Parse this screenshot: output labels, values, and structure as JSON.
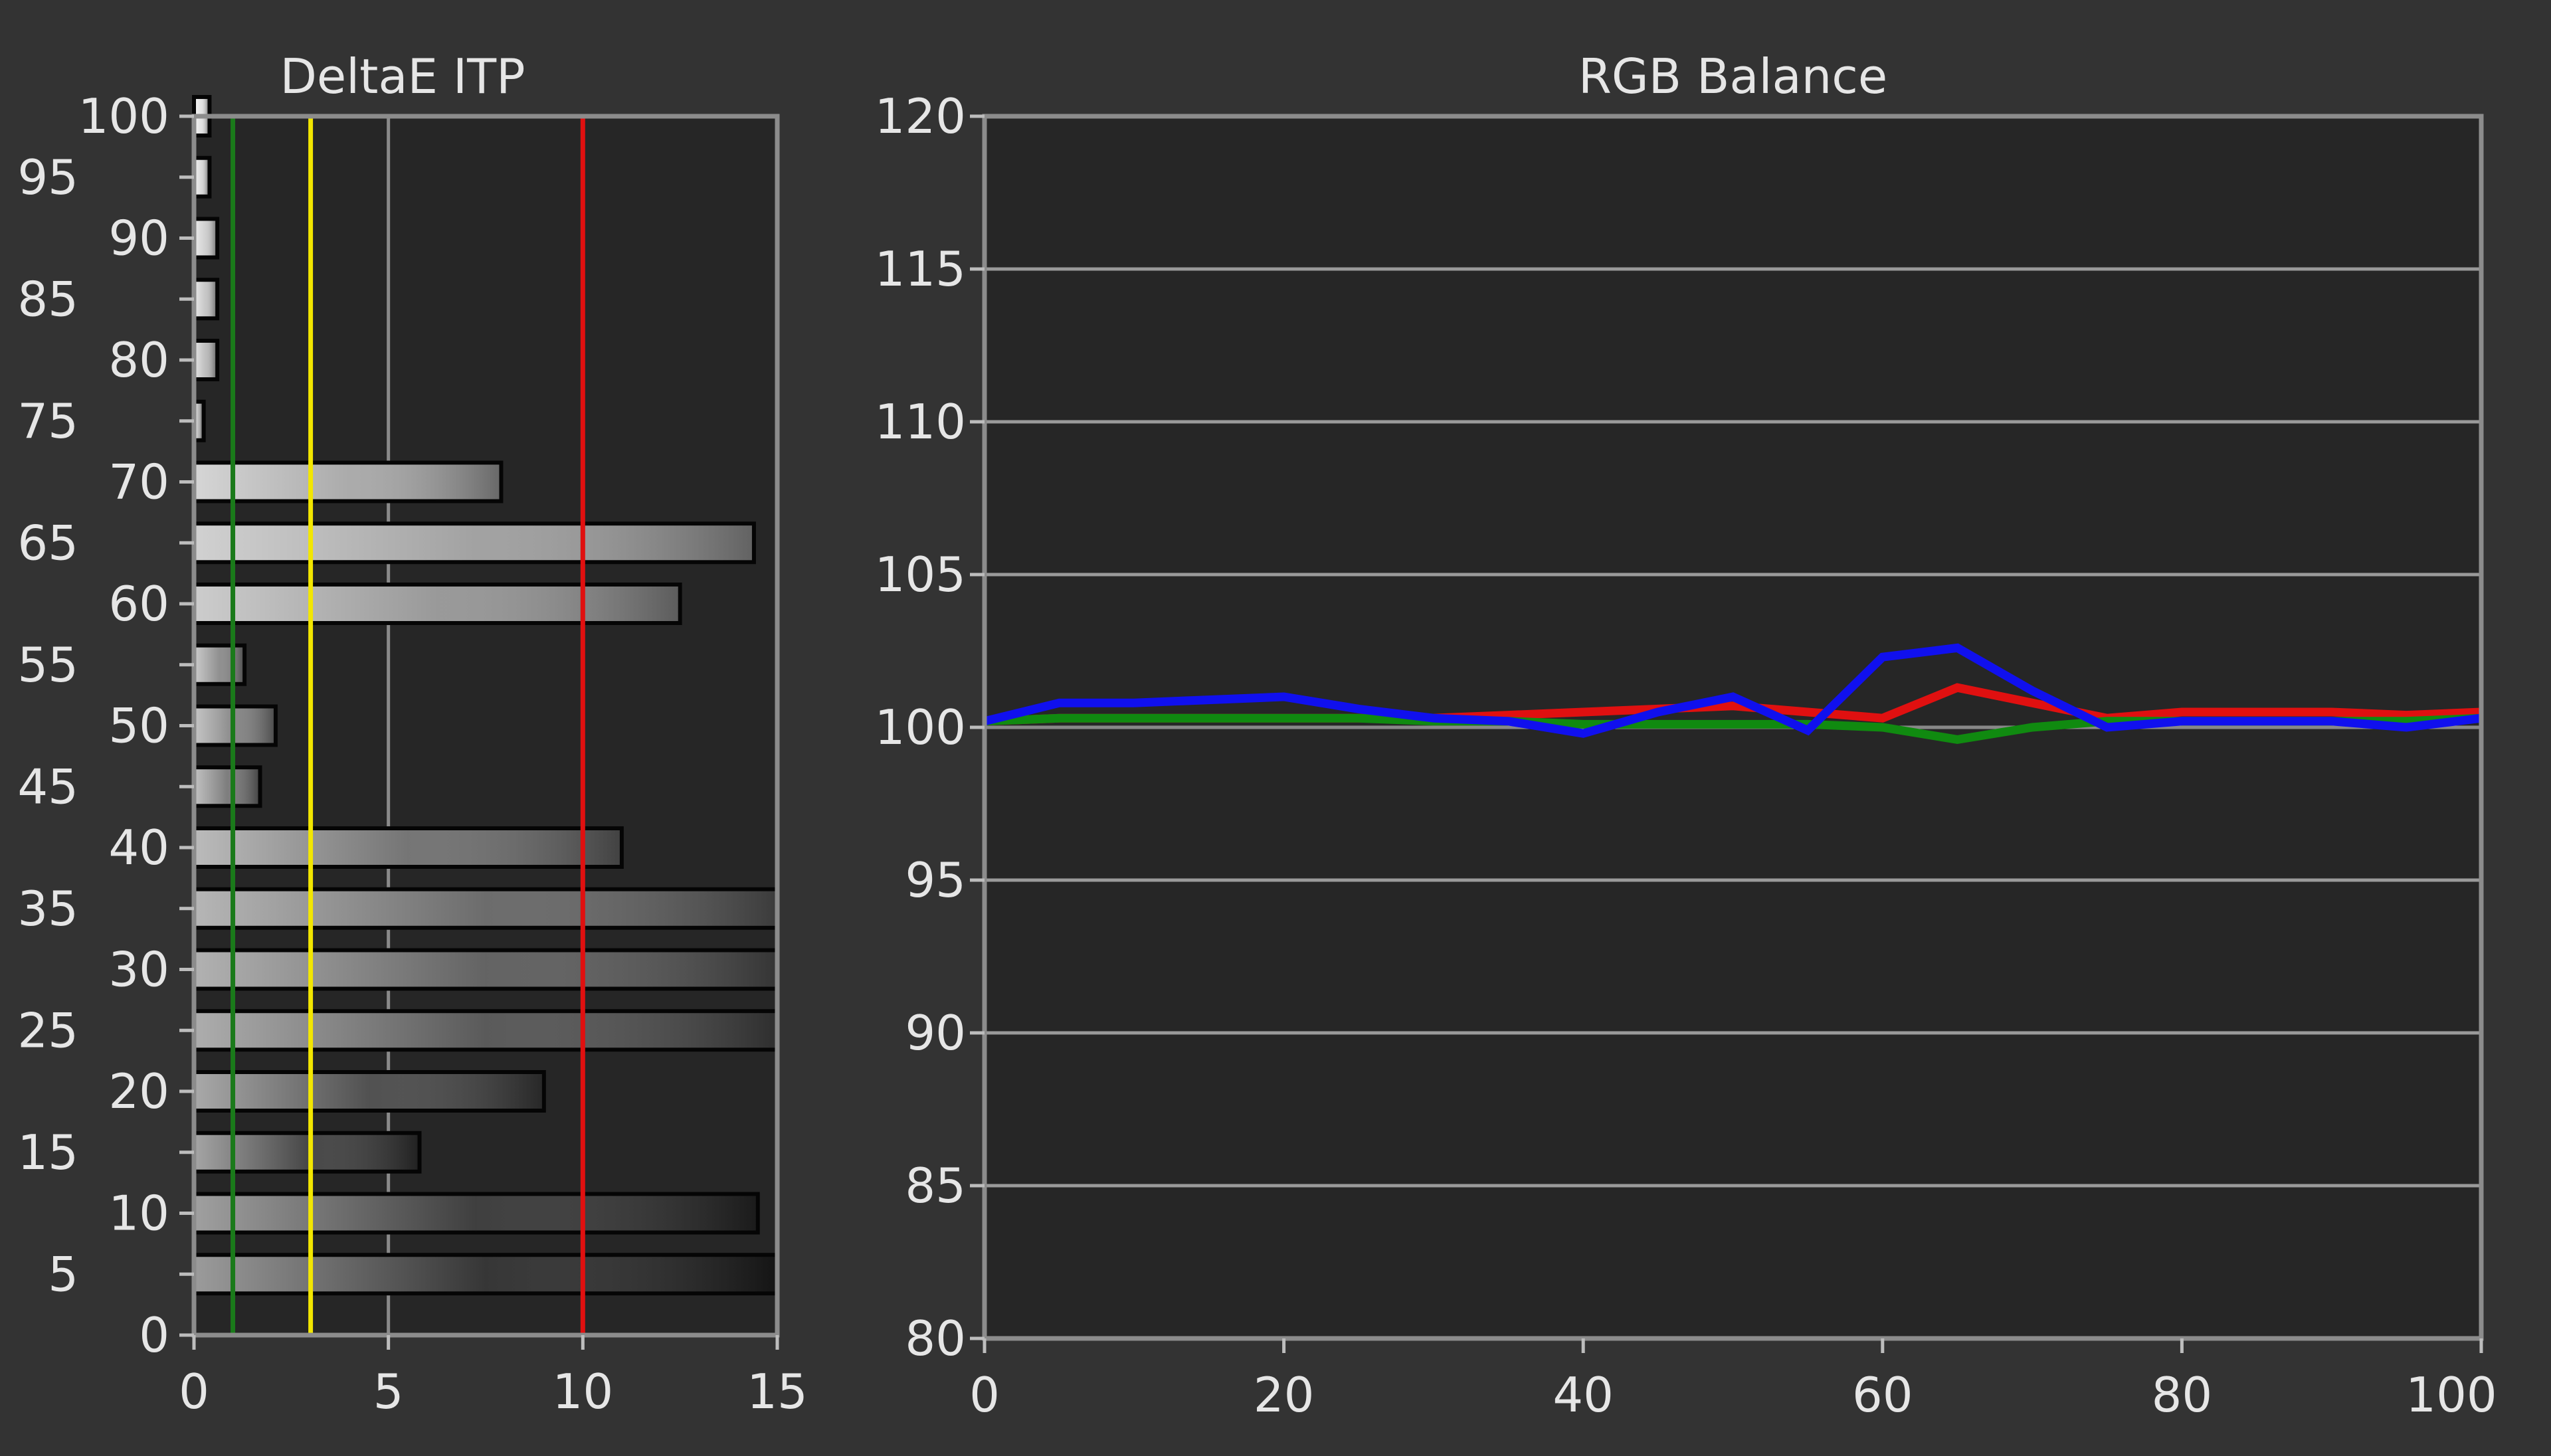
{
  "chart_data": [
    {
      "type": "bar",
      "orientation": "horizontal",
      "title": "DeltaE ITP",
      "xlabel": "",
      "ylabel": "",
      "xlim": [
        0,
        15
      ],
      "ylim": [
        0,
        100
      ],
      "x_ticks": [
        "0",
        "5",
        "10",
        "15"
      ],
      "y_ticks": [
        "0",
        "5",
        "10",
        "15",
        "20",
        "25",
        "30",
        "35",
        "40",
        "45",
        "50",
        "55",
        "60",
        "65",
        "70",
        "75",
        "80",
        "85",
        "90",
        "95",
        "100"
      ],
      "categories": [
        5,
        10,
        15,
        20,
        25,
        30,
        35,
        40,
        45,
        50,
        55,
        60,
        65,
        70,
        75,
        80,
        85,
        90,
        95,
        100
      ],
      "values": [
        15,
        14.5,
        5.8,
        9,
        15,
        15,
        15,
        11,
        1.7,
        2.1,
        1.3,
        12.5,
        14.4,
        7.9,
        0.25,
        0.6,
        0.6,
        0.6,
        0.4,
        0.4
      ],
      "threshold_lines": [
        {
          "value": 1,
          "color": "#1a7a1a"
        },
        {
          "value": 3,
          "color": "#f2e600"
        },
        {
          "value": 10,
          "color": "#e01010"
        }
      ],
      "gridline_at": 5,
      "grid": true
    },
    {
      "type": "line",
      "title": "RGB Balance",
      "xlabel": "",
      "ylabel": "",
      "xlim": [
        0,
        100
      ],
      "ylim": [
        80,
        120
      ],
      "x_ticks": [
        "0",
        "20",
        "40",
        "60",
        "80",
        "100"
      ],
      "y_ticks": [
        "80",
        "85",
        "90",
        "95",
        "100",
        "105",
        "110",
        "115",
        "120"
      ],
      "x": [
        0,
        5,
        10,
        15,
        20,
        25,
        30,
        35,
        40,
        45,
        50,
        55,
        60,
        65,
        70,
        75,
        80,
        85,
        90,
        95,
        100
      ],
      "series": [
        {
          "color": "#e01010",
          "values": [
            100.2,
            100.3,
            100.3,
            100.3,
            100.3,
            100.3,
            100.3,
            100.4,
            100.5,
            100.6,
            100.7,
            100.5,
            100.3,
            101.3,
            100.8,
            100.3,
            100.5,
            100.5,
            100.5,
            100.4,
            100.5
          ]
        },
        {
          "color": "#108a10",
          "values": [
            100.2,
            100.3,
            100.3,
            100.3,
            100.3,
            100.3,
            100.2,
            100.2,
            100.1,
            100.1,
            100.1,
            100.1,
            100.0,
            99.6,
            100.0,
            100.2,
            100.2,
            100.2,
            100.2,
            100.2,
            100.3
          ]
        },
        {
          "color": "#1010ee",
          "values": [
            100.2,
            100.8,
            100.8,
            100.9,
            101.0,
            100.6,
            100.3,
            100.2,
            99.8,
            100.5,
            101.0,
            99.9,
            102.3,
            102.6,
            101.2,
            100.0,
            100.2,
            100.2,
            100.2,
            100.0,
            100.3
          ]
        }
      ],
      "reference_line": {
        "value": 100,
        "color": "#888888"
      },
      "grid": true
    }
  ]
}
